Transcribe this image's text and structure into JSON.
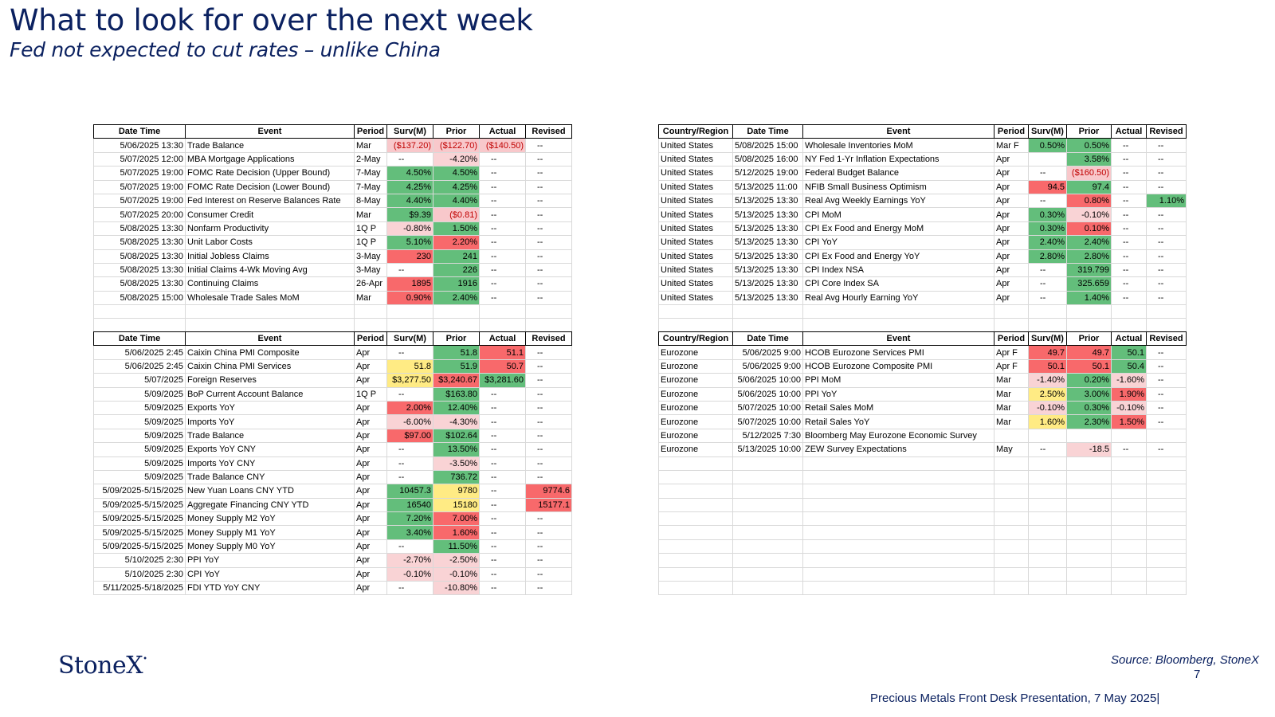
{
  "title": "What to look for over the next week",
  "subtitle": "Fed not expected to cut rates – unlike China",
  "source": "Source: Bloomberg, StoneX",
  "page_number": "7",
  "footer": "Precious Metals Front Desk Presentation, 7 May 2025|",
  "logo": "StoneX",
  "us_table": {
    "headers": [
      "Date Time",
      "Event",
      "Period",
      "Surv(M)",
      "Prior",
      "Actual",
      "Revised"
    ],
    "rows": [
      [
        "5/06/2025 13:30",
        "Trade Balance",
        "Mar",
        "($137.20)",
        "($122.70)",
        "($140.50)",
        "--"
      ],
      [
        "5/07/2025 12:00",
        "MBA Mortgage Applications",
        "2-May",
        "--",
        "-4.20%",
        "--",
        "--"
      ],
      [
        "5/07/2025 19:00",
        "FOMC Rate Decision (Upper Bound)",
        "7-May",
        "4.50%",
        "4.50%",
        "--",
        "--"
      ],
      [
        "5/07/2025 19:00",
        "FOMC Rate Decision (Lower Bound)",
        "7-May",
        "4.25%",
        "4.25%",
        "--",
        "--"
      ],
      [
        "5/07/2025 19:00",
        "Fed Interest on Reserve Balances Rate",
        "8-May",
        "4.40%",
        "4.40%",
        "--",
        "--"
      ],
      [
        "5/07/2025 20:00",
        "Consumer Credit",
        "Mar",
        "$9.39",
        "($0.81)",
        "--",
        "--"
      ],
      [
        "5/08/2025 13:30",
        "Nonfarm Productivity",
        "1Q P",
        "-0.80%",
        "1.50%",
        "--",
        "--"
      ],
      [
        "5/08/2025 13:30",
        "Unit Labor Costs",
        "1Q P",
        "5.10%",
        "2.20%",
        "--",
        "--"
      ],
      [
        "5/08/2025 13:30",
        "Initial Jobless Claims",
        "3-May",
        "230",
        "241",
        "--",
        "--"
      ],
      [
        "5/08/2025 13:30",
        "Initial Claims 4-Wk Moving Avg",
        "3-May",
        "--",
        "226",
        "--",
        "--"
      ],
      [
        "5/08/2025 13:30",
        "Continuing Claims",
        "26-Apr",
        "1895",
        "1916",
        "--",
        "--"
      ],
      [
        "5/08/2025 15:00",
        "Wholesale Trade Sales MoM",
        "Mar",
        "0.90%",
        "2.40%",
        "--",
        "--"
      ]
    ]
  },
  "us_table2": {
    "headers": [
      "Country/Region",
      "Date Time",
      "Event",
      "Period",
      "Surv(M)",
      "Prior",
      "Actual",
      "Revised"
    ],
    "rows": [
      [
        "United States",
        "5/08/2025 15:00",
        "Wholesale Inventories MoM",
        "Mar F",
        "0.50%",
        "0.50%",
        "--",
        "--"
      ],
      [
        "United States",
        "5/08/2025 16:00",
        "NY Fed 1-Yr Inflation Expectations",
        "Apr",
        "",
        "3.58%",
        "--",
        "--"
      ],
      [
        "United States",
        "5/12/2025 19:00",
        "Federal Budget Balance",
        "Apr",
        "--",
        "($160.50)",
        "--",
        "--"
      ],
      [
        "United States",
        "5/13/2025 11:00",
        "NFIB Small Business Optimism",
        "Apr",
        "94.5",
        "97.4",
        "--",
        "--"
      ],
      [
        "United States",
        "5/13/2025 13:30",
        "Real Avg Weekly Earnings YoY",
        "Apr",
        "--",
        "0.80%",
        "--",
        "1.10%"
      ],
      [
        "United States",
        "5/13/2025 13:30",
        "CPI MoM",
        "Apr",
        "0.30%",
        "-0.10%",
        "--",
        "--"
      ],
      [
        "United States",
        "5/13/2025 13:30",
        "CPI Ex Food and Energy MoM",
        "Apr",
        "0.30%",
        "0.10%",
        "--",
        "--"
      ],
      [
        "United States",
        "5/13/2025 13:30",
        "CPI YoY",
        "Apr",
        "2.40%",
        "2.40%",
        "--",
        "--"
      ],
      [
        "United States",
        "5/13/2025 13:30",
        "CPI Ex Food and Energy YoY",
        "Apr",
        "2.80%",
        "2.80%",
        "--",
        "--"
      ],
      [
        "United States",
        "5/13/2025 13:30",
        "CPI Index NSA",
        "Apr",
        "--",
        "319.799",
        "--",
        "--"
      ],
      [
        "United States",
        "5/13/2025 13:30",
        "CPI Core Index SA",
        "Apr",
        "--",
        "325.659",
        "--",
        "--"
      ],
      [
        "United States",
        "5/13/2025 13:30",
        "Real Avg Hourly Earning YoY",
        "Apr",
        "--",
        "1.40%",
        "--",
        "--"
      ]
    ]
  },
  "china_table": {
    "headers": [
      "Date Time",
      "Event",
      "Period",
      "Surv(M)",
      "Prior",
      "Actual",
      "Revised"
    ],
    "rows": [
      [
        "5/06/2025 2:45",
        "Caixin China PMI Composite",
        "Apr",
        "--",
        "51.8",
        "51.1",
        "--"
      ],
      [
        "5/06/2025 2:45",
        "Caixin China PMI Services",
        "Apr",
        "51.8",
        "51.9",
        "50.7",
        "--"
      ],
      [
        "5/07/2025",
        "Foreign Reserves",
        "Apr",
        "$3,277.50",
        "$3,240.67",
        "$3,281.60",
        "--"
      ],
      [
        "5/09/2025",
        "BoP Current Account Balance",
        "1Q P",
        "--",
        "$163.80",
        "--",
        "--"
      ],
      [
        "5/09/2025",
        "Exports YoY",
        "Apr",
        "2.00%",
        "12.40%",
        "--",
        "--"
      ],
      [
        "5/09/2025",
        "Imports YoY",
        "Apr",
        "-6.00%",
        "-4.30%",
        "--",
        "--"
      ],
      [
        "5/09/2025",
        "Trade Balance",
        "Apr",
        "$97.00",
        "$102.64",
        "--",
        "--"
      ],
      [
        "5/09/2025",
        "Exports YoY CNY",
        "Apr",
        "--",
        "13.50%",
        "--",
        "--"
      ],
      [
        "5/09/2025",
        "Imports YoY CNY",
        "Apr",
        "--",
        "-3.50%",
        "--",
        "--"
      ],
      [
        "5/09/2025",
        "Trade Balance CNY",
        "Apr",
        "--",
        "736.72",
        "--",
        "--"
      ],
      [
        "5/09/2025-5/15/2025",
        "New Yuan Loans CNY YTD",
        "Apr",
        "10457.3",
        "9780",
        "--",
        "9774.6"
      ],
      [
        "5/09/2025-5/15/2025",
        "Aggregate Financing CNY YTD",
        "Apr",
        "16540",
        "15180",
        "--",
        "15177.1"
      ],
      [
        "5/09/2025-5/15/2025",
        "Money Supply M2 YoY",
        "Apr",
        "7.20%",
        "7.00%",
        "--",
        "--"
      ],
      [
        "5/09/2025-5/15/2025",
        "Money Supply M1 YoY",
        "Apr",
        "3.40%",
        "1.60%",
        "--",
        "--"
      ],
      [
        "5/09/2025-5/15/2025",
        "Money Supply M0 YoY",
        "Apr",
        "--",
        "11.50%",
        "--",
        "--"
      ],
      [
        "5/10/2025 2:30",
        "PPI YoY",
        "Apr",
        "-2.70%",
        "-2.50%",
        "--",
        "--"
      ],
      [
        "5/10/2025 2:30",
        "CPI YoY",
        "Apr",
        "-0.10%",
        "-0.10%",
        "--",
        "--"
      ],
      [
        "5/11/2025-5/18/2025",
        "FDI YTD YoY CNY",
        "Apr",
        "--",
        "-10.80%",
        "--",
        "--"
      ]
    ]
  },
  "euro_table": {
    "headers": [
      "Country/Region",
      "Date Time",
      "Event",
      "Period",
      "Surv(M)",
      "Prior",
      "Actual",
      "Revised"
    ],
    "rows": [
      [
        "Eurozone",
        "5/06/2025 9:00",
        "HCOB Eurozone Services PMI",
        "Apr F",
        "49.7",
        "49.7",
        "50.1",
        "--"
      ],
      [
        "Eurozone",
        "5/06/2025 9:00",
        "HCOB Eurozone Composite PMI",
        "Apr F",
        "50.1",
        "50.1",
        "50.4",
        "--"
      ],
      [
        "Eurozone",
        "5/06/2025 10:00",
        "PPI MoM",
        "Mar",
        "-1.40%",
        "0.20%",
        "-1.60%",
        "--"
      ],
      [
        "Eurozone",
        "5/06/2025 10:00",
        "PPI YoY",
        "Mar",
        "2.50%",
        "3.00%",
        "1.90%",
        "--"
      ],
      [
        "Eurozone",
        "5/07/2025 10:00",
        "Retail Sales MoM",
        "Mar",
        "-0.10%",
        "0.30%",
        "-0.10%",
        "--"
      ],
      [
        "Eurozone",
        "5/07/2025 10:00",
        "Retail Sales YoY",
        "Mar",
        "1.60%",
        "2.30%",
        "1.50%",
        "--"
      ],
      [
        "Eurozone",
        "5/12/2025 7:30",
        "Bloomberg May Eurozone Economic Survey",
        "",
        "",
        "",
        "",
        ""
      ],
      [
        "Eurozone",
        "5/13/2025 10:00",
        "ZEW Survey Expectations",
        "May",
        "--",
        "-18.5",
        "--",
        "--"
      ]
    ]
  }
}
